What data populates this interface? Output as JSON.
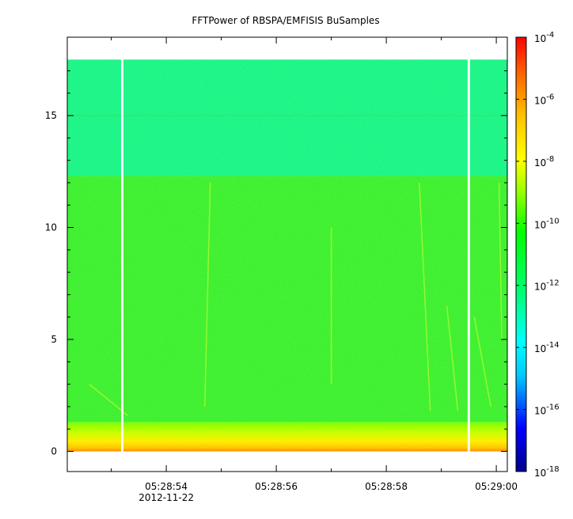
{
  "chart_data": {
    "type": "heatmap",
    "title": "FFTPower of RBSPA/EMFISIS  BuSamples",
    "xlabel": "",
    "ylabel": "",
    "date_label": "2012-11-22",
    "x_ticks": [
      "05:28:54",
      "05:28:56",
      "05:28:58",
      "05:29:00"
    ],
    "x_range": [
      "05:28:52.2",
      "05:29:00.2"
    ],
    "y_ticks": [
      0,
      5,
      10,
      15
    ],
    "y_range": [
      -0.9,
      18.5
    ],
    "data_max_y": 17.5,
    "band_boundary_y": 12.3,
    "gaps": [
      "05:28:53.2",
      "05:28:59.5"
    ],
    "z_scale": "log",
    "z_range": [
      1e-18,
      0.0001
    ],
    "z_ticks": [
      {
        "base": "10",
        "exp": "-4"
      },
      {
        "base": "10",
        "exp": "-6"
      },
      {
        "base": "10",
        "exp": "-8"
      },
      {
        "base": "10",
        "exp": "-10"
      },
      {
        "base": "10",
        "exp": "-12"
      },
      {
        "base": "10",
        "exp": "-14"
      },
      {
        "base": "10",
        "exp": "-16"
      },
      {
        "base": "10",
        "exp": "-18"
      }
    ],
    "colorscale": [
      "#00008b",
      "#0000ff",
      "#00c8ff",
      "#00ffff",
      "#00ff80",
      "#00ff00",
      "#a0ff00",
      "#ffff00",
      "#ffc000",
      "#ff6000",
      "#ff0000"
    ],
    "grid": false,
    "legend": "colorbar-right"
  }
}
